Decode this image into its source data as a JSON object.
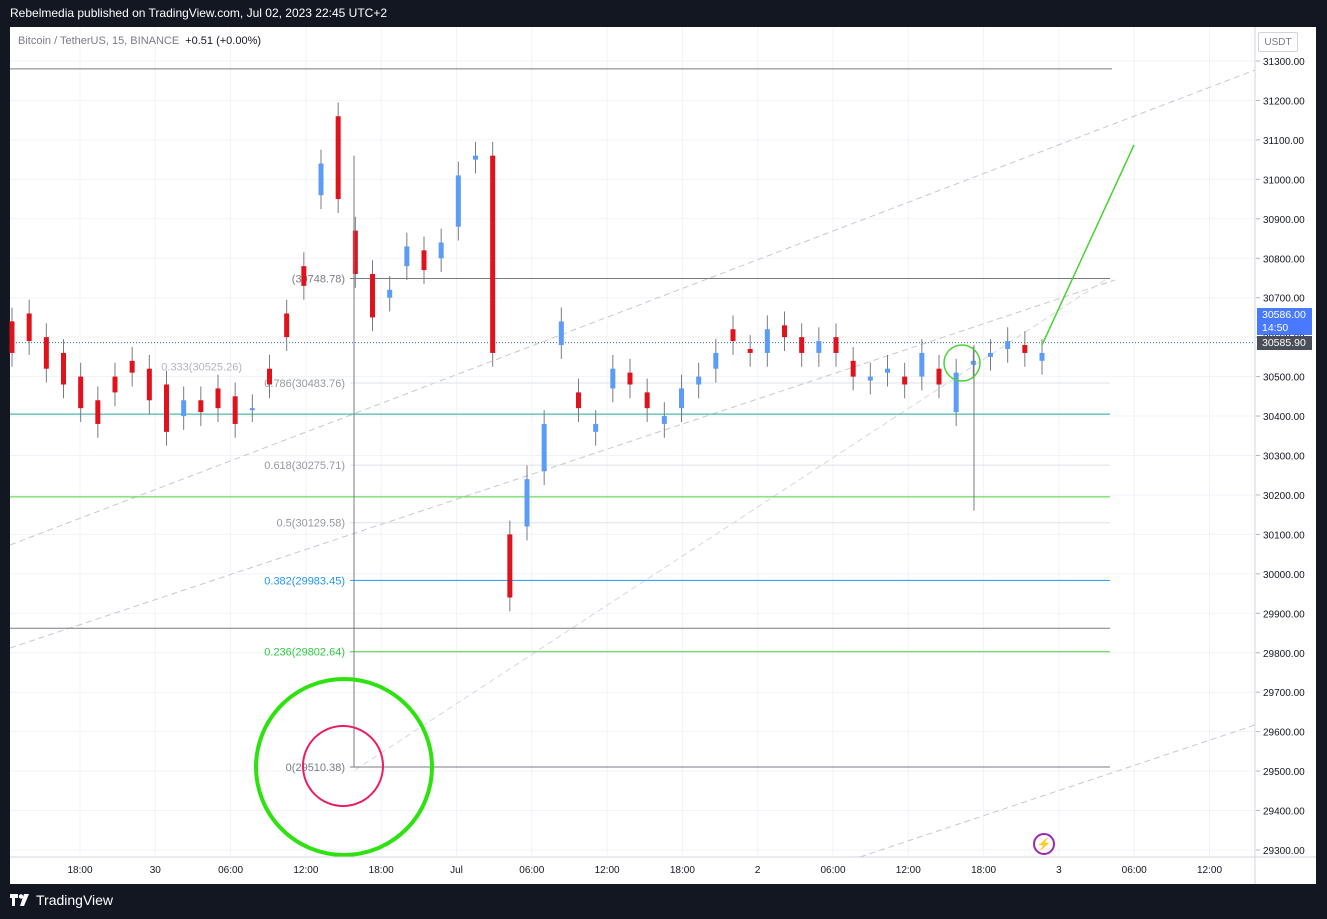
{
  "header": {
    "publisher": "Rebelmedia published on TradingView.com, Jul 02, 2023 22:45 UTC+2"
  },
  "legend": {
    "symbol": "Bitcoin / TetherUS, 15, BINANCE",
    "change": "+0.51 (+0.00%)"
  },
  "currency_label": "USDT",
  "price_badge": {
    "price": "30586.00",
    "countdown": "14:50",
    "last": "30585.90"
  },
  "brand": {
    "name": "TradingView"
  },
  "colors": {
    "up": "#5b9cf6",
    "down": "#e0121b",
    "accent_green": "#4cd137",
    "accent_blue": "#2196f3",
    "circle_outer": "#2ee20f",
    "circle_inner": "#e91e63"
  },
  "icons": {
    "logo": "tradingview-logo-icon",
    "alert": "lightning-bolt-icon"
  },
  "chart_data": {
    "type": "candlestick",
    "symbol": "Bitcoin / TetherUS, 15, BINANCE",
    "ylim": [
      29300,
      31300
    ],
    "y_ticks": [
      "31300.00",
      "31200.00",
      "31100.00",
      "31000.00",
      "30900.00",
      "30800.00",
      "30700.00",
      "30600.00",
      "30500.00",
      "30400.00",
      "30300.00",
      "30200.00",
      "30100.00",
      "30000.00",
      "29900.00",
      "29800.00",
      "29700.00",
      "29600.00",
      "29500.00",
      "29400.00",
      "29300.00"
    ],
    "x_ticks": [
      "18:00",
      "30",
      "06:00",
      "12:00",
      "18:00",
      "Jul",
      "06:00",
      "12:00",
      "18:00",
      "2",
      "06:00",
      "12:00",
      "18:00",
      "3",
      "06:00",
      "12:00"
    ],
    "fib_levels": [
      {
        "label": "0.786(30483.76)",
        "value": 30483.76
      },
      {
        "label": "0.618(30275.71)",
        "value": 30275.71
      },
      {
        "label": "0.5(30129.58)",
        "value": 30129.58
      },
      {
        "label": "0.382(29983.45)",
        "value": 29983.45
      },
      {
        "label": "0.236(29802.64)",
        "value": 29802.64
      },
      {
        "label": "0(29510.38)",
        "value": 29510.38
      }
    ],
    "upper_label": "(30748.78)",
    "overlap_label": "0.333(30525.26)",
    "horizontal_levels": [
      31280,
      30748.78,
      30586,
      30405,
      30195,
      29862
    ],
    "candles_path": [
      [
        30640,
        30560
      ],
      [
        30660,
        30590
      ],
      [
        30600,
        30520
      ],
      [
        30560,
        30480
      ],
      [
        30500,
        30420
      ],
      [
        30440,
        30380
      ],
      [
        30500,
        30460
      ],
      [
        30540,
        30510
      ],
      [
        30520,
        30440
      ],
      [
        30480,
        30360
      ],
      [
        30400,
        30440
      ],
      [
        30440,
        30410
      ],
      [
        30470,
        30420
      ],
      [
        30450,
        30380
      ],
      [
        30420,
        30420
      ],
      [
        30520,
        30480
      ],
      [
        30660,
        30600
      ],
      [
        30780,
        30730
      ],
      [
        30960,
        31040
      ],
      [
        31160,
        30950
      ],
      [
        30870,
        30760
      ],
      [
        30760,
        30650
      ],
      [
        30700,
        30720
      ],
      [
        30780,
        30830
      ],
      [
        30820,
        30770
      ],
      [
        30800,
        30840
      ],
      [
        30880,
        31010
      ],
      [
        31050,
        31060
      ],
      [
        31060,
        30560
      ],
      [
        30100,
        29940
      ],
      [
        30120,
        30240
      ],
      [
        30260,
        30380
      ],
      [
        30580,
        30640
      ],
      [
        30460,
        30420
      ],
      [
        30360,
        30380
      ],
      [
        30470,
        30520
      ],
      [
        30510,
        30480
      ],
      [
        30460,
        30420
      ],
      [
        30380,
        30400
      ],
      [
        30420,
        30470
      ],
      [
        30480,
        30500
      ],
      [
        30520,
        30560
      ],
      [
        30620,
        30590
      ],
      [
        30570,
        30560
      ],
      [
        30560,
        30620
      ],
      [
        30630,
        30600
      ],
      [
        30600,
        30560
      ],
      [
        30560,
        30590
      ],
      [
        30600,
        30560
      ],
      [
        30540,
        30500
      ],
      [
        30490,
        30500
      ],
      [
        30510,
        30520
      ],
      [
        30500,
        30480
      ],
      [
        30500,
        30560
      ],
      [
        30520,
        30480
      ],
      [
        30410,
        30510
      ],
      [
        30530,
        30540
      ],
      [
        30550,
        30560
      ],
      [
        30570,
        30590
      ],
      [
        30580,
        30560
      ],
      [
        30540,
        30560
      ]
    ]
  }
}
